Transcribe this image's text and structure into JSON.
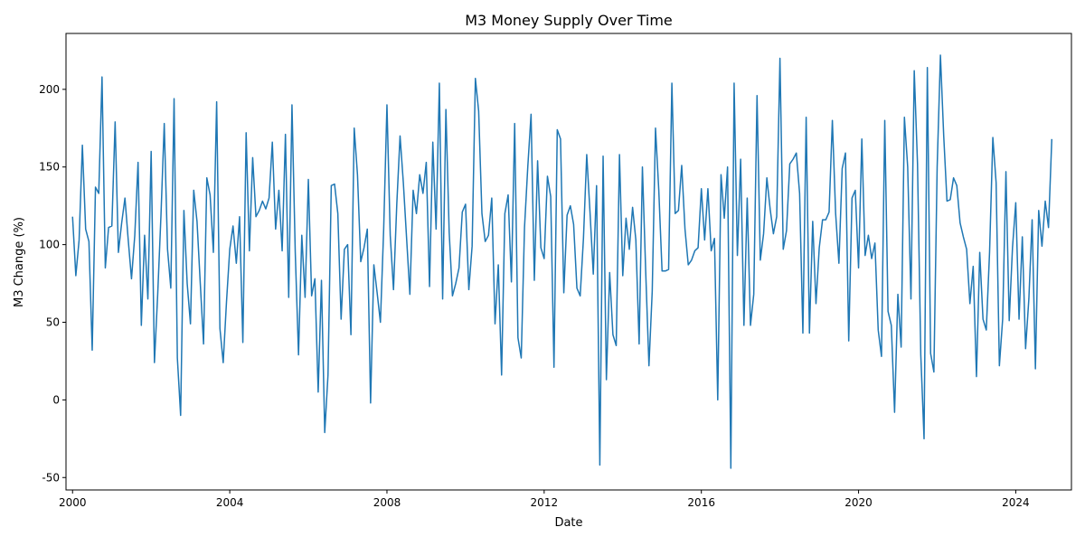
{
  "chart_data": {
    "type": "line",
    "title": "M3 Money Supply Over Time",
    "xlabel": "Date",
    "ylabel": "M3 Change (%)",
    "xlim": [
      "1999-11-01",
      "2025-06-01"
    ],
    "ylim": [
      -58,
      236
    ],
    "x_ticks": [
      "2000",
      "2004",
      "2008",
      "2012",
      "2016",
      "2020",
      "2024"
    ],
    "y_ticks": [
      -50,
      0,
      50,
      100,
      150,
      200
    ],
    "grid": false,
    "series": [
      {
        "color": "#1f77b4",
        "x_start": "2000-01",
        "frequency": "monthly",
        "values": [
          118,
          80,
          103,
          164,
          110,
          102,
          32,
          137,
          133,
          208,
          85,
          111,
          112,
          179,
          95,
          114,
          130,
          103,
          78,
          106,
          153,
          48,
          106,
          65,
          160,
          24,
          68,
          119,
          178,
          97,
          72,
          194,
          27,
          -10,
          122,
          75,
          49,
          135,
          115,
          75,
          36,
          143,
          132,
          95,
          192,
          46,
          24,
          63,
          97,
          112,
          88,
          118,
          37,
          172,
          96,
          156,
          118,
          122,
          128,
          123,
          130,
          166,
          110,
          135,
          96,
          171,
          66,
          190,
          95,
          29,
          106,
          66,
          142,
          67,
          78,
          5,
          77,
          -21,
          16,
          138,
          139,
          120,
          52,
          97,
          100,
          42,
          175,
          145,
          89,
          98,
          110,
          -2,
          87,
          69,
          50,
          110,
          190,
          106,
          71,
          126,
          170,
          140,
          104,
          68,
          135,
          120,
          145,
          133,
          153,
          73,
          166,
          110,
          204,
          65,
          187,
          108,
          67,
          75,
          85,
          121,
          126,
          71,
          99,
          207,
          186,
          120,
          102,
          106,
          130,
          49,
          87,
          16,
          120,
          132,
          76,
          178,
          40,
          27,
          111,
          150,
          184,
          77,
          154,
          98,
          91,
          144,
          131,
          21,
          174,
          168,
          69,
          119,
          125,
          113,
          72,
          67,
          104,
          158,
          121,
          81,
          138,
          -42,
          157,
          13,
          82,
          42,
          35,
          158,
          80,
          117,
          97,
          124,
          103,
          36,
          150,
          83,
          22,
          70,
          175,
          135,
          83,
          83,
          84,
          204,
          120,
          122,
          151,
          110,
          87,
          90,
          96,
          98,
          136,
          103,
          136,
          96,
          104,
          0,
          145,
          117,
          150,
          -44,
          204,
          93,
          155,
          48,
          130,
          48,
          68,
          196,
          90,
          107,
          143,
          123,
          107,
          118,
          220,
          97,
          109,
          152,
          155,
          159,
          133,
          43,
          182,
          43,
          115,
          62,
          98,
          116,
          116,
          121,
          180,
          120,
          88,
          149,
          159,
          38,
          130,
          135,
          85,
          168,
          93,
          106,
          91,
          101,
          45,
          28,
          180,
          57,
          48,
          -8,
          68,
          34,
          182,
          150,
          65,
          212,
          152,
          29,
          -25,
          214,
          30,
          18,
          150,
          222,
          170,
          128,
          129,
          143,
          138,
          114,
          105,
          97,
          62,
          86,
          15,
          95,
          52,
          45,
          95,
          169,
          140,
          22,
          52,
          147,
          51,
          98,
          127,
          52,
          105,
          33,
          65,
          116,
          20,
          122,
          99,
          128,
          111,
          168
        ]
      }
    ]
  }
}
